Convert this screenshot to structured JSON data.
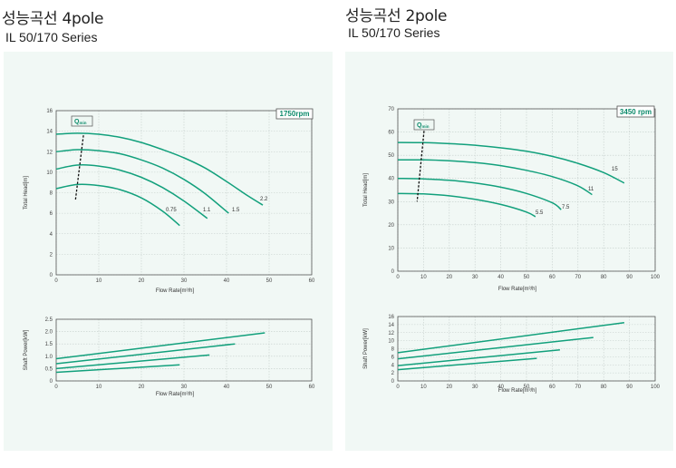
{
  "left": {
    "title": "성능곡선 4pole",
    "subtitle": "IL 50/170 Series"
  },
  "right": {
    "title": "성능곡선 2pole",
    "subtitle": "IL 50/170 Series"
  },
  "colors": {
    "curve": "#12a07c",
    "panel": "#f1f8f5",
    "grid": "#c4cdca",
    "axis": "#555555",
    "accent": "#0b8a6a"
  },
  "chart_data": [
    {
      "id": "head-4pole",
      "type": "line",
      "rpm_label": "1750rpm",
      "qmin_label": "Q",
      "qmin_sub": "min",
      "xlabel": "Flow Rate[m³/h]",
      "ylabel": "Total Head[m]",
      "xlim": [
        0,
        60
      ],
      "ylim": [
        0,
        16
      ],
      "xticks": [
        0,
        10,
        20,
        30,
        40,
        50,
        60
      ],
      "yticks": [
        0,
        2,
        4,
        6,
        8,
        10,
        12,
        14,
        16
      ],
      "grid": true,
      "qmin_line": [
        [
          6.4,
          13.6
        ],
        [
          4.5,
          7.2
        ]
      ],
      "series": [
        {
          "name": "0.75",
          "x": [
            0,
            5,
            10,
            15,
            20,
            25,
            29
          ],
          "y": [
            8.4,
            8.8,
            8.7,
            8.3,
            7.5,
            6.2,
            4.8
          ]
        },
        {
          "name": "1.1",
          "x": [
            0,
            5,
            10,
            15,
            20,
            25,
            30,
            35.5
          ],
          "y": [
            10.3,
            10.7,
            10.6,
            10.2,
            9.5,
            8.5,
            7.2,
            5.5
          ]
        },
        {
          "name": "1.5",
          "x": [
            0,
            5,
            10,
            15,
            20,
            25,
            30,
            35,
            40.5
          ],
          "y": [
            12.0,
            12.2,
            12.1,
            11.8,
            11.2,
            10.4,
            9.3,
            7.9,
            6.0
          ]
        },
        {
          "name": "2.2",
          "x": [
            0,
            5,
            10,
            15,
            20,
            25,
            30,
            35,
            40,
            45,
            48.5
          ],
          "y": [
            13.7,
            13.8,
            13.7,
            13.4,
            12.9,
            12.2,
            11.4,
            10.4,
            9.1,
            7.7,
            6.8
          ]
        }
      ]
    },
    {
      "id": "power-4pole",
      "type": "line",
      "xlabel": "Flow Rate[m³/h]",
      "ylabel": "Shaft Power[kW]",
      "xlim": [
        0,
        60
      ],
      "ylim": [
        0,
        2.5
      ],
      "xticks": [
        0,
        10,
        20,
        30,
        40,
        50,
        60
      ],
      "yticks": [
        "0",
        "0.5",
        "1.0",
        "1.5",
        "2.0",
        "2.5"
      ],
      "grid": true,
      "series": [
        {
          "x": [
            0,
            29
          ],
          "y": [
            0.35,
            0.65
          ]
        },
        {
          "x": [
            0,
            36
          ],
          "y": [
            0.5,
            1.05
          ]
        },
        {
          "x": [
            0,
            42
          ],
          "y": [
            0.7,
            1.5
          ]
        },
        {
          "x": [
            0,
            49
          ],
          "y": [
            0.9,
            1.95
          ]
        }
      ]
    },
    {
      "id": "head-2pole",
      "type": "line",
      "rpm_label": "3450 rpm",
      "qmin_label": "Q",
      "qmin_sub": "min",
      "xlabel": "Flow Rate[m³/h]",
      "ylabel": "Total Head[m]",
      "xlim": [
        0,
        100
      ],
      "ylim": [
        0,
        70
      ],
      "xticks": [
        0,
        10,
        20,
        30,
        40,
        50,
        60,
        70,
        80,
        90,
        100
      ],
      "yticks": [
        0,
        10,
        20,
        30,
        40,
        50,
        60,
        70
      ],
      "grid": true,
      "qmin_line": [
        [
          10.2,
          60.5
        ],
        [
          7.5,
          30.0
        ]
      ],
      "series": [
        {
          "name": "5.5",
          "x": [
            0,
            10,
            20,
            30,
            40,
            50,
            53.5
          ],
          "y": [
            33.5,
            33.3,
            32.5,
            31.0,
            28.8,
            25.5,
            23.5
          ]
        },
        {
          "name": "7.5",
          "x": [
            0,
            10,
            20,
            30,
            40,
            50,
            60,
            63.5
          ],
          "y": [
            40.0,
            39.8,
            39.2,
            38.0,
            36.2,
            33.5,
            29.5,
            26.5
          ]
        },
        {
          "name": "11",
          "x": [
            0,
            10,
            20,
            30,
            40,
            50,
            60,
            70,
            75.5
          ],
          "y": [
            48.0,
            48.0,
            47.6,
            46.8,
            45.5,
            43.5,
            40.8,
            36.8,
            33.0
          ]
        },
        {
          "name": "15",
          "x": [
            0,
            10,
            20,
            30,
            40,
            50,
            60,
            70,
            80,
            88
          ],
          "y": [
            55.5,
            55.4,
            55.0,
            54.3,
            53.2,
            51.7,
            49.5,
            46.5,
            42.5,
            38.0
          ]
        }
      ]
    },
    {
      "id": "power-2pole",
      "type": "line",
      "xlabel": "Flow Rate[m³/h]",
      "ylabel": "Shaft Power[kW]",
      "xlim": [
        0,
        100
      ],
      "ylim": [
        0,
        16
      ],
      "xticks": [
        0,
        10,
        20,
        30,
        40,
        50,
        60,
        70,
        80,
        90,
        100
      ],
      "yticks": [
        0,
        2,
        4,
        6,
        8,
        10,
        12,
        14,
        16
      ],
      "grid": true,
      "series": [
        {
          "x": [
            0,
            54
          ],
          "y": [
            2.8,
            5.6
          ]
        },
        {
          "x": [
            0,
            63
          ],
          "y": [
            3.8,
            7.7
          ]
        },
        {
          "x": [
            0,
            76
          ],
          "y": [
            5.5,
            10.8
          ]
        },
        {
          "x": [
            0,
            88
          ],
          "y": [
            7.0,
            14.5
          ]
        }
      ]
    }
  ]
}
